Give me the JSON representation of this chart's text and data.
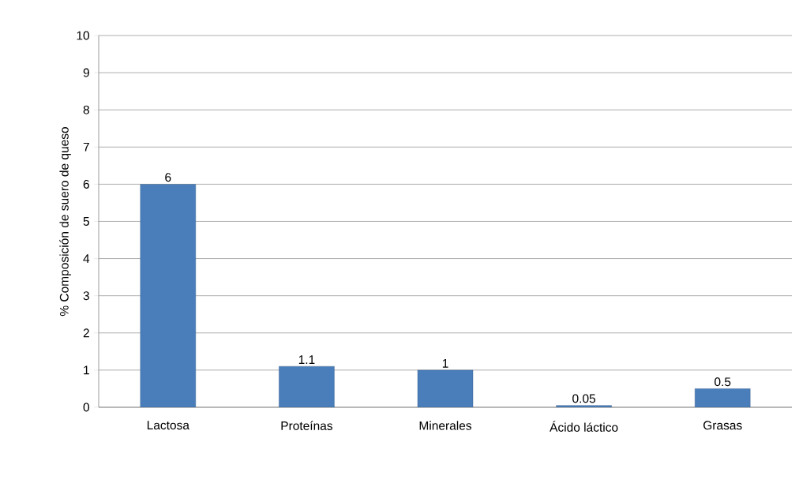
{
  "chart_data": {
    "type": "bar",
    "ylabel": "% Composición de suero de queso",
    "categories": [
      "Lactosa",
      "Proteínas",
      "Minerales",
      "Ácido láctico",
      "Grasas"
    ],
    "values": [
      6,
      1.1,
      1,
      0.05,
      0.5
    ],
    "color": "#4a7ebb",
    "ylim": [
      0,
      10
    ],
    "yticks": [
      0,
      1,
      2,
      3,
      4,
      5,
      6,
      7,
      8,
      9,
      10
    ],
    "grid": "y",
    "data_labels": true
  }
}
